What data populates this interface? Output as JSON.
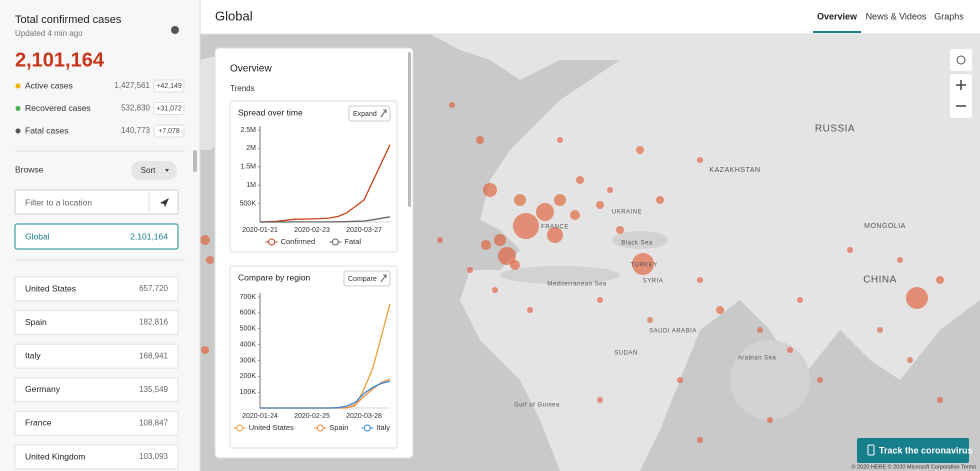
{
  "sidebar": {
    "title": "Total confirmed cases",
    "updated": "Updated 4 min ago",
    "total": "2,101,164",
    "stats": [
      {
        "label": "Active cases",
        "value": "1,427,561",
        "delta": "+42,149"
      },
      {
        "label": "Recovered cases",
        "value": "532,830",
        "delta": "+31,072"
      },
      {
        "label": "Fatal cases",
        "value": "140,773",
        "delta": "+7,078"
      }
    ],
    "browse": "Browse",
    "sort": "Sort",
    "filter_placeholder": "Filter to a location",
    "selected": {
      "name": "Global",
      "value": "2,101,164"
    },
    "locations": [
      {
        "name": "United States",
        "value": "657,720"
      },
      {
        "name": "Spain",
        "value": "182,816"
      },
      {
        "name": "Italy",
        "value": "168,941"
      },
      {
        "name": "Germany",
        "value": "135,549"
      },
      {
        "name": "France",
        "value": "108,847"
      },
      {
        "name": "United Kingdom",
        "value": "103,093"
      }
    ]
  },
  "header": {
    "title": "Global",
    "tabs": [
      "Overview",
      "News & Videos",
      "Graphs"
    ]
  },
  "map": {
    "labels": [
      "RUSSIA",
      "CHINA",
      "MONGOLIA",
      "FRANCE",
      "UKRAINE",
      "Black Sea",
      "TURKEY",
      "SYRIA",
      "Mediterranean Sea",
      "SAUDI ARABIA",
      "SUDAN",
      "Arabian Sea",
      "Gulf of Guinea",
      "KAZAKHSTAN"
    ],
    "button": "Track the coronavirus",
    "copyright": "© 2020 HERE © 2020 Microsoft Corporation Terms"
  },
  "panel": {
    "title": "Overview",
    "subtitle": "Trends",
    "buttons": [
      "Expand",
      "Compare"
    ]
  },
  "chart_data": [
    {
      "type": "line",
      "title": "Spread over time",
      "categories": [
        "2020-01-21",
        null,
        null,
        null,
        null,
        null,
        "2020-02-23",
        null,
        null,
        null,
        null,
        null,
        "2020-03-27",
        null,
        null,
        null
      ],
      "series": [
        {
          "name": "Confirmed",
          "color": "#c8411b",
          "values": [
            300,
            7000,
            20000,
            45000,
            75000,
            80000,
            85000,
            92000,
            110000,
            150000,
            250000,
            420000,
            600000,
            1100000,
            1600000,
            2100000
          ]
        },
        {
          "name": "Fatal",
          "color": "#666666",
          "values": [
            10,
            150,
            400,
            1100,
            2000,
            2700,
            3000,
            3200,
            3800,
            6000,
            11000,
            20000,
            28000,
            60000,
            100000,
            140000
          ]
        }
      ],
      "ylim": [
        0,
        2500000
      ],
      "yticks": [
        {
          "value": 500000,
          "label": "500K"
        },
        {
          "value": 1000000,
          "label": "1M"
        },
        {
          "value": 1500000,
          "label": "1.5M"
        },
        {
          "value": 2000000,
          "label": "2M"
        },
        {
          "value": 2500000,
          "label": "2.5M"
        }
      ]
    },
    {
      "type": "line",
      "title": "Compare by region",
      "categories": [
        "2020-01-24",
        null,
        null,
        null,
        null,
        null,
        "2020-02-25",
        null,
        null,
        null,
        null,
        null,
        "2020-03-28",
        null,
        null,
        null
      ],
      "series": [
        {
          "name": "United States",
          "color": "#e6a23c",
          "values": [
            0,
            0,
            0,
            0,
            0,
            0,
            0,
            0,
            0,
            100,
            1000,
            15000,
            120000,
            250000,
            450000,
            657000
          ]
        },
        {
          "name": "Spain",
          "color": "#f08c3c",
          "values": [
            0,
            0,
            0,
            0,
            0,
            0,
            0,
            0,
            0,
            100,
            2000,
            20000,
            73000,
            120000,
            160000,
            182000
          ]
        },
        {
          "name": "Italy",
          "color": "#3a86d6",
          "values": [
            0,
            0,
            0,
            0,
            0,
            0,
            0,
            0,
            100,
            2000,
            12000,
            35000,
            92000,
            130000,
            155000,
            169000
          ]
        }
      ],
      "ylim": [
        0,
        700000
      ],
      "yticks": [
        {
          "value": 100000,
          "label": "100K"
        },
        {
          "value": 200000,
          "label": "200K"
        },
        {
          "value": 300000,
          "label": "300K"
        },
        {
          "value": 400000,
          "label": "400K"
        },
        {
          "value": 500000,
          "label": "500K"
        },
        {
          "value": 600000,
          "label": "600K"
        },
        {
          "value": 700000,
          "label": "700K"
        }
      ]
    }
  ]
}
